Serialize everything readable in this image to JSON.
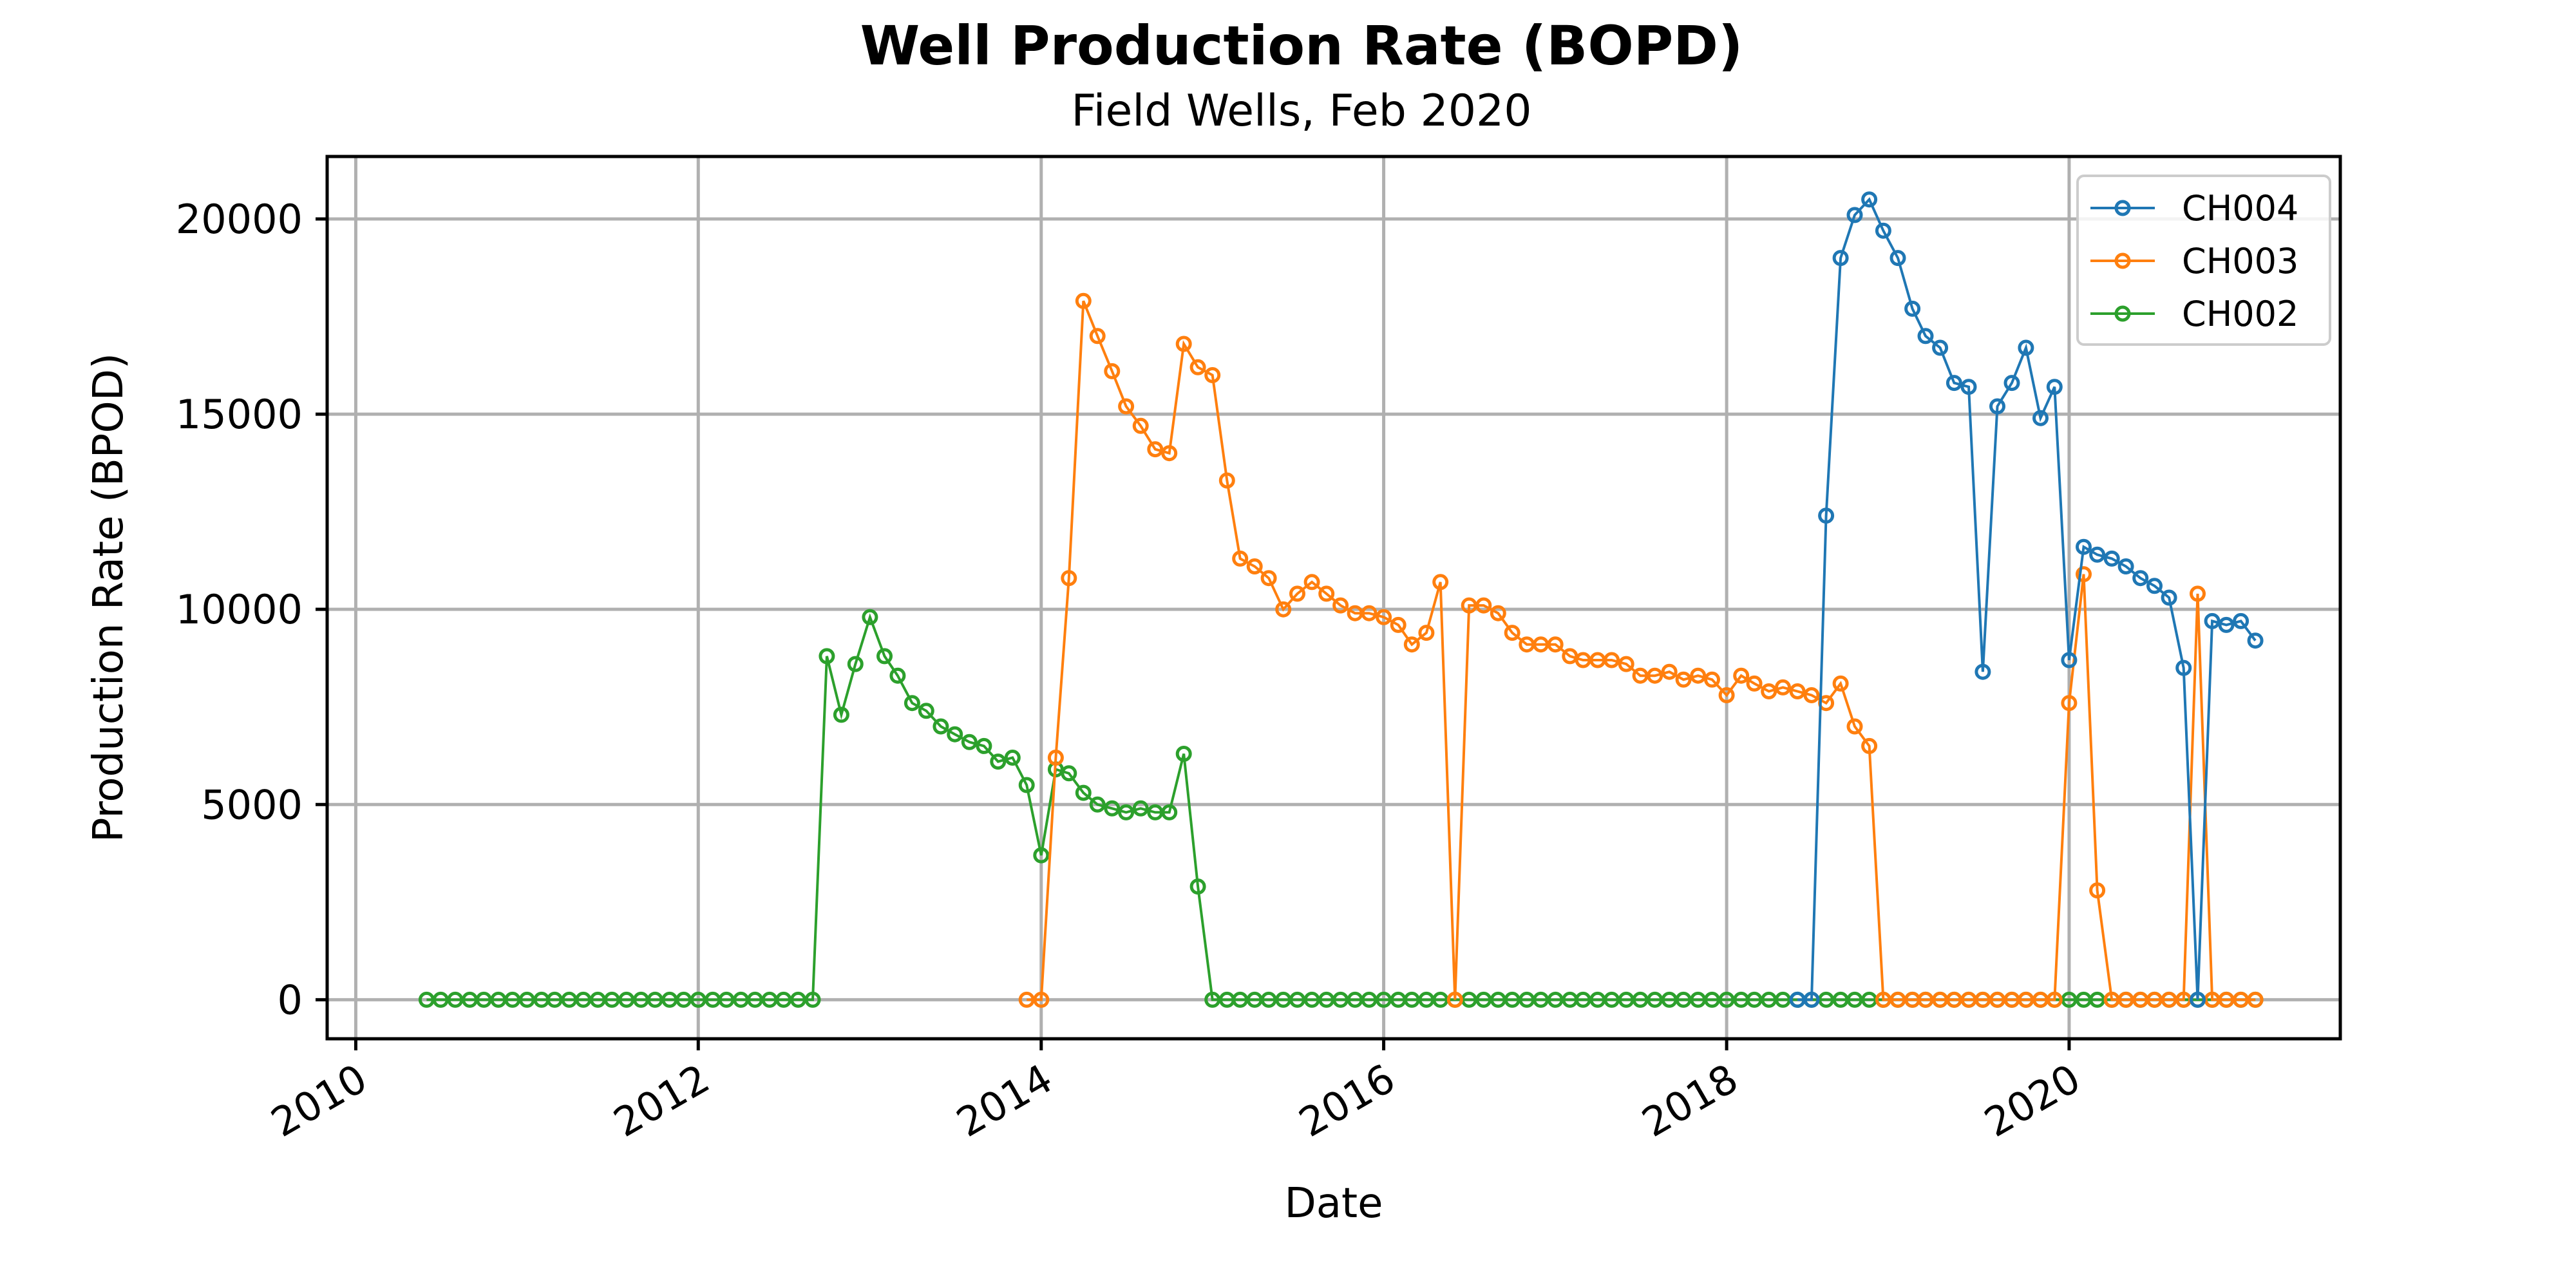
{
  "chart_data": {
    "type": "line",
    "title": "Well Production Rate (BOPD)",
    "subtitle": "Field Wells, Feb 2020",
    "xlabel": "Date",
    "ylabel": "Production Rate (BPOD)",
    "xlim": [
      "2009-11-01",
      "2021-08-01"
    ],
    "ylim": [
      -1000,
      21600
    ],
    "x_ticks": [
      "2010",
      "2012",
      "2014",
      "2016",
      "2018",
      "2020"
    ],
    "y_ticks": [
      0,
      5000,
      10000,
      15000,
      20000
    ],
    "grid": true,
    "legend_position": "top-right",
    "series": [
      {
        "name": "CH004",
        "color": "#1f77b4",
        "points": [
          [
            "2018-06-01",
            0
          ],
          [
            "2018-07-01",
            0
          ],
          [
            "2018-08-01",
            12400
          ],
          [
            "2018-09-01",
            19000
          ],
          [
            "2018-10-01",
            20100
          ],
          [
            "2018-11-01",
            20500
          ],
          [
            "2018-12-01",
            19700
          ],
          [
            "2019-01-01",
            19000
          ],
          [
            "2019-02-01",
            17700
          ],
          [
            "2019-03-01",
            17000
          ],
          [
            "2019-04-01",
            16700
          ],
          [
            "2019-05-01",
            15800
          ],
          [
            "2019-06-01",
            15700
          ],
          [
            "2019-07-01",
            8400
          ],
          [
            "2019-08-01",
            15200
          ],
          [
            "2019-09-01",
            15800
          ],
          [
            "2019-10-01",
            16700
          ],
          [
            "2019-11-01",
            14900
          ],
          [
            "2019-12-01",
            15700
          ],
          [
            "2020-01-01",
            8700
          ],
          [
            "2020-02-01",
            11600
          ],
          [
            "2020-03-01",
            11400
          ],
          [
            "2020-04-01",
            11300
          ],
          [
            "2020-05-01",
            11100
          ],
          [
            "2020-06-01",
            10800
          ],
          [
            "2020-07-01",
            10600
          ],
          [
            "2020-08-01",
            10300
          ],
          [
            "2020-09-01",
            8500
          ],
          [
            "2020-10-01",
            0
          ],
          [
            "2020-11-01",
            9700
          ],
          [
            "2020-12-01",
            9600
          ],
          [
            "2021-01-01",
            9700
          ],
          [
            "2021-02-01",
            9200
          ]
        ]
      },
      {
        "name": "CH003",
        "color": "#ff7f0e",
        "points": [
          [
            "2013-12-01",
            0
          ],
          [
            "2014-01-01",
            0
          ],
          [
            "2014-02-01",
            6200
          ],
          [
            "2014-03-01",
            10800
          ],
          [
            "2014-04-01",
            17900
          ],
          [
            "2014-05-01",
            17000
          ],
          [
            "2014-06-01",
            16100
          ],
          [
            "2014-07-01",
            15200
          ],
          [
            "2014-08-01",
            14700
          ],
          [
            "2014-09-01",
            14100
          ],
          [
            "2014-10-01",
            14000
          ],
          [
            "2014-11-01",
            16800
          ],
          [
            "2014-12-01",
            16200
          ],
          [
            "2015-01-01",
            16000
          ],
          [
            "2015-02-01",
            13300
          ],
          [
            "2015-03-01",
            11300
          ],
          [
            "2015-04-01",
            11100
          ],
          [
            "2015-05-01",
            10800
          ],
          [
            "2015-06-01",
            10000
          ],
          [
            "2015-07-01",
            10400
          ],
          [
            "2015-08-01",
            10700
          ],
          [
            "2015-09-01",
            10400
          ],
          [
            "2015-10-01",
            10100
          ],
          [
            "2015-11-01",
            9900
          ],
          [
            "2015-12-01",
            9900
          ],
          [
            "2016-01-01",
            9800
          ],
          [
            "2016-02-01",
            9600
          ],
          [
            "2016-03-01",
            9100
          ],
          [
            "2016-04-01",
            9400
          ],
          [
            "2016-05-01",
            10700
          ],
          [
            "2016-06-01",
            0
          ],
          [
            "2016-07-01",
            10100
          ],
          [
            "2016-08-01",
            10100
          ],
          [
            "2016-09-01",
            9900
          ],
          [
            "2016-10-01",
            9400
          ],
          [
            "2016-11-01",
            9100
          ],
          [
            "2016-12-01",
            9100
          ],
          [
            "2017-01-01",
            9100
          ],
          [
            "2017-02-01",
            8800
          ],
          [
            "2017-03-01",
            8700
          ],
          [
            "2017-04-01",
            8700
          ],
          [
            "2017-05-01",
            8700
          ],
          [
            "2017-06-01",
            8600
          ],
          [
            "2017-07-01",
            8300
          ],
          [
            "2017-08-01",
            8300
          ],
          [
            "2017-09-01",
            8400
          ],
          [
            "2017-10-01",
            8200
          ],
          [
            "2017-11-01",
            8300
          ],
          [
            "2017-12-01",
            8200
          ],
          [
            "2018-01-01",
            7800
          ],
          [
            "2018-02-01",
            8300
          ],
          [
            "2018-03-01",
            8100
          ],
          [
            "2018-04-01",
            7900
          ],
          [
            "2018-05-01",
            8000
          ],
          [
            "2018-06-01",
            7900
          ],
          [
            "2018-07-01",
            7800
          ],
          [
            "2018-08-01",
            7600
          ],
          [
            "2018-09-01",
            8100
          ],
          [
            "2018-10-01",
            7000
          ],
          [
            "2018-11-01",
            6500
          ],
          [
            "2018-12-01",
            0
          ],
          [
            "2019-01-01",
            0
          ],
          [
            "2019-02-01",
            0
          ],
          [
            "2019-03-01",
            0
          ],
          [
            "2019-04-01",
            0
          ],
          [
            "2019-05-01",
            0
          ],
          [
            "2019-06-01",
            0
          ],
          [
            "2019-07-01",
            0
          ],
          [
            "2019-08-01",
            0
          ],
          [
            "2019-09-01",
            0
          ],
          [
            "2019-10-01",
            0
          ],
          [
            "2019-11-01",
            0
          ],
          [
            "2019-12-01",
            0
          ],
          [
            "2020-01-01",
            7600
          ],
          [
            "2020-02-01",
            10900
          ],
          [
            "2020-03-01",
            2800
          ],
          [
            "2020-04-01",
            0
          ],
          [
            "2020-05-01",
            0
          ],
          [
            "2020-06-01",
            0
          ],
          [
            "2020-07-01",
            0
          ],
          [
            "2020-08-01",
            0
          ],
          [
            "2020-09-01",
            0
          ],
          [
            "2020-10-01",
            10400
          ],
          [
            "2020-11-01",
            0
          ],
          [
            "2020-12-01",
            0
          ],
          [
            "2021-01-01",
            0
          ],
          [
            "2021-02-01",
            0
          ]
        ]
      },
      {
        "name": "CH002",
        "color": "#2ca02c",
        "points": [
          [
            "2010-06-01",
            0
          ],
          [
            "2010-07-01",
            0
          ],
          [
            "2010-08-01",
            0
          ],
          [
            "2010-09-01",
            0
          ],
          [
            "2010-10-01",
            0
          ],
          [
            "2010-11-01",
            0
          ],
          [
            "2010-12-01",
            0
          ],
          [
            "2011-01-01",
            0
          ],
          [
            "2011-02-01",
            0
          ],
          [
            "2011-03-01",
            0
          ],
          [
            "2011-04-01",
            0
          ],
          [
            "2011-05-01",
            0
          ],
          [
            "2011-06-01",
            0
          ],
          [
            "2011-07-01",
            0
          ],
          [
            "2011-08-01",
            0
          ],
          [
            "2011-09-01",
            0
          ],
          [
            "2011-10-01",
            0
          ],
          [
            "2011-11-01",
            0
          ],
          [
            "2011-12-01",
            0
          ],
          [
            "2012-01-01",
            0
          ],
          [
            "2012-02-01",
            0
          ],
          [
            "2012-03-01",
            0
          ],
          [
            "2012-04-01",
            0
          ],
          [
            "2012-05-01",
            0
          ],
          [
            "2012-06-01",
            0
          ],
          [
            "2012-07-01",
            0
          ],
          [
            "2012-08-01",
            0
          ],
          [
            "2012-09-01",
            0
          ],
          [
            "2012-10-01",
            8800
          ],
          [
            "2012-11-01",
            7300
          ],
          [
            "2012-12-01",
            8600
          ],
          [
            "2013-01-01",
            9800
          ],
          [
            "2013-02-01",
            8800
          ],
          [
            "2013-03-01",
            8300
          ],
          [
            "2013-04-01",
            7600
          ],
          [
            "2013-05-01",
            7400
          ],
          [
            "2013-06-01",
            7000
          ],
          [
            "2013-07-01",
            6800
          ],
          [
            "2013-08-01",
            6600
          ],
          [
            "2013-09-01",
            6500
          ],
          [
            "2013-10-01",
            6100
          ],
          [
            "2013-11-01",
            6200
          ],
          [
            "2013-12-01",
            5500
          ],
          [
            "2014-01-01",
            3700
          ],
          [
            "2014-02-01",
            5900
          ],
          [
            "2014-03-01",
            5800
          ],
          [
            "2014-04-01",
            5300
          ],
          [
            "2014-05-01",
            5000
          ],
          [
            "2014-06-01",
            4900
          ],
          [
            "2014-07-01",
            4800
          ],
          [
            "2014-08-01",
            4900
          ],
          [
            "2014-09-01",
            4800
          ],
          [
            "2014-10-01",
            4800
          ],
          [
            "2014-11-01",
            6300
          ],
          [
            "2014-12-01",
            2900
          ],
          [
            "2015-01-01",
            0
          ],
          [
            "2015-02-01",
            0
          ],
          [
            "2015-03-01",
            0
          ],
          [
            "2015-04-01",
            0
          ],
          [
            "2015-05-01",
            0
          ],
          [
            "2015-06-01",
            0
          ],
          [
            "2015-07-01",
            0
          ],
          [
            "2015-08-01",
            0
          ],
          [
            "2015-09-01",
            0
          ],
          [
            "2015-10-01",
            0
          ],
          [
            "2015-11-01",
            0
          ],
          [
            "2015-12-01",
            0
          ],
          [
            "2016-01-01",
            0
          ],
          [
            "2016-02-01",
            0
          ],
          [
            "2016-03-01",
            0
          ],
          [
            "2016-04-01",
            0
          ],
          [
            "2016-05-01",
            0
          ],
          [
            "2016-06-01",
            0
          ],
          [
            "2016-07-01",
            0
          ],
          [
            "2016-08-01",
            0
          ],
          [
            "2016-09-01",
            0
          ],
          [
            "2016-10-01",
            0
          ],
          [
            "2016-11-01",
            0
          ],
          [
            "2016-12-01",
            0
          ],
          [
            "2017-01-01",
            0
          ],
          [
            "2017-02-01",
            0
          ],
          [
            "2017-03-01",
            0
          ],
          [
            "2017-04-01",
            0
          ],
          [
            "2017-05-01",
            0
          ],
          [
            "2017-06-01",
            0
          ],
          [
            "2017-07-01",
            0
          ],
          [
            "2017-08-01",
            0
          ],
          [
            "2017-09-01",
            0
          ],
          [
            "2017-10-01",
            0
          ],
          [
            "2017-11-01",
            0
          ],
          [
            "2017-12-01",
            0
          ],
          [
            "2018-01-01",
            0
          ],
          [
            "2018-02-01",
            0
          ],
          [
            "2018-03-01",
            0
          ],
          [
            "2018-04-01",
            0
          ],
          [
            "2018-05-01",
            0
          ],
          [
            "2018-06-01",
            0
          ],
          [
            "2018-07-01",
            0
          ],
          [
            "2018-08-01",
            0
          ],
          [
            "2018-09-01",
            0
          ],
          [
            "2018-10-01",
            0
          ],
          [
            "2018-11-01",
            0
          ],
          [
            "2018-12-01",
            0
          ],
          [
            "2019-01-01",
            0
          ],
          [
            "2019-02-01",
            0
          ],
          [
            "2019-03-01",
            0
          ],
          [
            "2019-04-01",
            0
          ],
          [
            "2019-05-01",
            0
          ],
          [
            "2019-06-01",
            0
          ],
          [
            "2019-07-01",
            0
          ],
          [
            "2019-08-01",
            0
          ],
          [
            "2019-09-01",
            0
          ],
          [
            "2019-10-01",
            0
          ],
          [
            "2019-11-01",
            0
          ],
          [
            "2019-12-01",
            0
          ],
          [
            "2020-01-01",
            0
          ],
          [
            "2020-02-01",
            0
          ],
          [
            "2020-03-01",
            0
          ],
          [
            "2020-04-01",
            0
          ],
          [
            "2020-05-01",
            0
          ],
          [
            "2020-06-01",
            0
          ],
          [
            "2020-07-01",
            0
          ],
          [
            "2020-08-01",
            0
          ],
          [
            "2020-09-01",
            0
          ],
          [
            "2020-10-01",
            0
          ],
          [
            "2020-11-01",
            0
          ],
          [
            "2020-12-01",
            0
          ],
          [
            "2021-01-01",
            0
          ],
          [
            "2021-02-01",
            0
          ]
        ]
      }
    ]
  }
}
